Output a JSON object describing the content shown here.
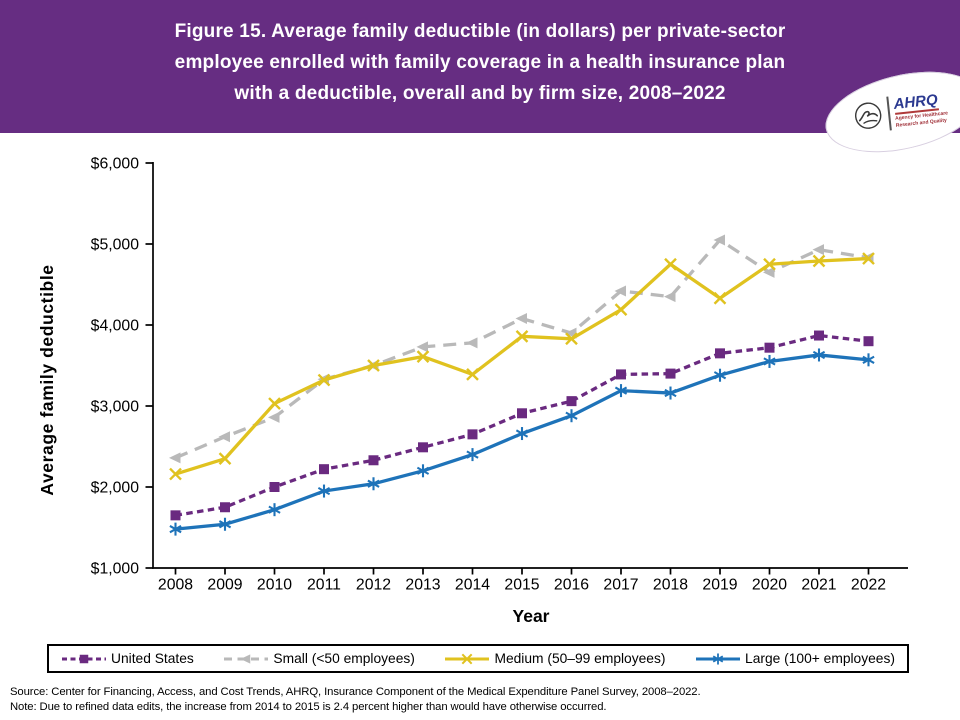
{
  "header": {
    "title_lines": [
      "Figure 15. Average family deductible (in dollars) per private-sector",
      "employee enrolled with family coverage in a health insurance plan",
      "with a deductible, overall and by firm size, 2008–2022"
    ],
    "background_color": "#662d82",
    "logo": {
      "name": "AHRQ",
      "tagline": "Agency for Healthcare Research and Quality"
    }
  },
  "chart_data": {
    "type": "line",
    "title": "Figure 15. Average family deductible (in dollars) per private-sector employee enrolled with family coverage in a health insurance plan with a deductible, overall and by firm size, 2008–2022",
    "xlabel": "Year",
    "ylabel": "Average family deductible",
    "x": [
      2008,
      2009,
      2010,
      2011,
      2012,
      2013,
      2014,
      2015,
      2016,
      2017,
      2018,
      2019,
      2020,
      2021,
      2022
    ],
    "ylim": [
      1000,
      6000
    ],
    "yticks": [
      1000,
      2000,
      3000,
      4000,
      5000,
      6000
    ],
    "ytick_format": "$#,##0",
    "grid": false,
    "legend_position": "bottom",
    "series": [
      {
        "name": "United States",
        "color": "#6a2a80",
        "dash": "dashed",
        "marker": "square",
        "values": [
          1650,
          1750,
          2000,
          2220,
          2330,
          2490,
          2650,
          2910,
          3060,
          3390,
          3400,
          3650,
          3720,
          3870,
          3800
        ]
      },
      {
        "name": "Small (<50 employees)",
        "color": "#b9b9b9",
        "dash": "dashed",
        "marker": "triangle",
        "values": [
          2360,
          2620,
          2860,
          3330,
          3500,
          3730,
          3780,
          4080,
          3900,
          4420,
          4350,
          5050,
          4650,
          4930,
          4830
        ]
      },
      {
        "name": "Medium (50–99 employees)",
        "color": "#e0c21f",
        "dash": "solid",
        "marker": "x",
        "values": [
          2160,
          2350,
          3030,
          3320,
          3500,
          3610,
          3390,
          3860,
          3830,
          4190,
          4750,
          4330,
          4750,
          4790,
          4820
        ]
      },
      {
        "name": "Large (100+ employees)",
        "color": "#1e73b9",
        "dash": "solid",
        "marker": "asterisk",
        "values": [
          1480,
          1540,
          1720,
          1950,
          2040,
          2200,
          2400,
          2660,
          2880,
          3190,
          3160,
          3380,
          3550,
          3630,
          3570
        ]
      }
    ]
  },
  "footer": {
    "source": "Source: Center for Financing, Access, and Cost Trends, AHRQ, Insurance Component of the Medical Expenditure Panel Survey,  2008–2022.",
    "note": "Note: Due to refined data edits, the increase from 2014 to 2015 is 2.4 percent higher than would have otherwise occurred."
  }
}
